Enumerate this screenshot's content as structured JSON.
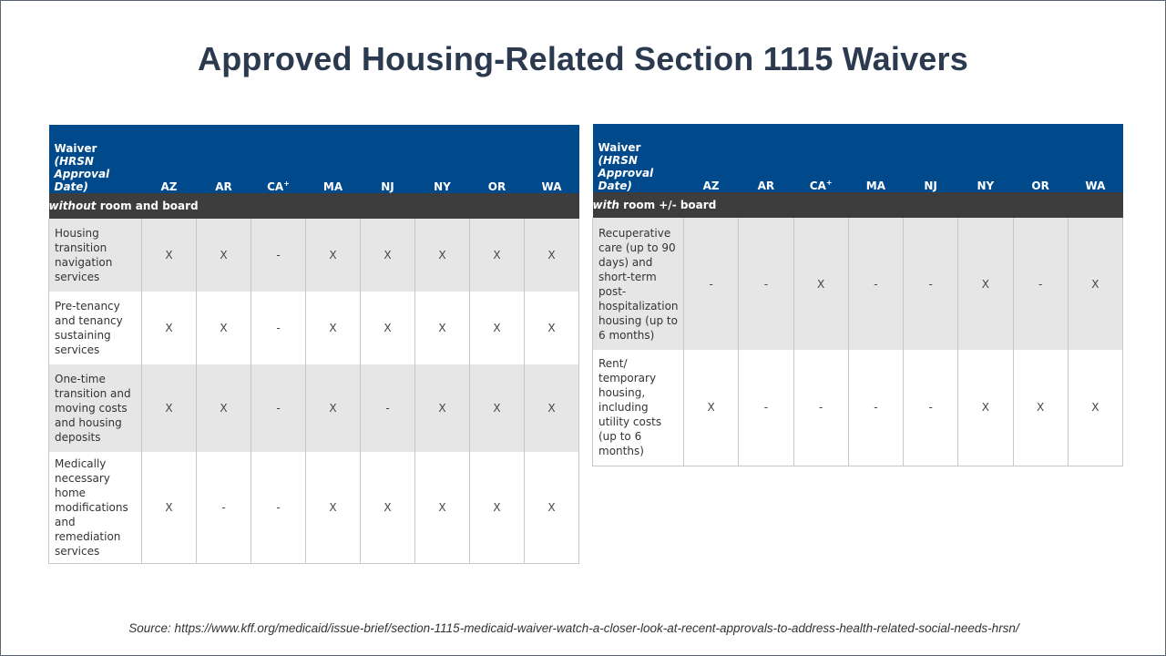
{
  "title": "Approved Housing-Related Section 1115 Waivers",
  "header": {
    "waiver": "Waiver",
    "hrsn": "(HRSN",
    "approval": "Approval",
    "date": "Date)",
    "states": [
      "AZ",
      "AR",
      "CA",
      "MA",
      "NJ",
      "NY",
      "OR",
      "WA"
    ],
    "ca_marker": "+"
  },
  "left_table": {
    "section_italic": "without",
    "section_rest": " room and board",
    "rows": [
      {
        "label": "Housing transition navigation services",
        "values": [
          "X",
          "X",
          "-",
          "X",
          "X",
          "X",
          "X",
          "X"
        ]
      },
      {
        "label": "Pre-tenancy and tenancy sustaining services",
        "values": [
          "X",
          "X",
          "-",
          "X",
          "X",
          "X",
          "X",
          "X"
        ]
      },
      {
        "label": "One-time transition and moving costs and housing deposits",
        "values": [
          "X",
          "X",
          "-",
          "X",
          "-",
          "X",
          "X",
          "X"
        ]
      },
      {
        "label": "Medically necessary home modifications and remediation services",
        "values": [
          "X",
          "-",
          "-",
          "X",
          "X",
          "X",
          "X",
          "X"
        ]
      }
    ]
  },
  "right_table": {
    "section_italic": "with",
    "section_rest": " room +/- board",
    "rows": [
      {
        "label": "Recuperative care (up to 90 days) and short-term post-hospitalization housing (up to 6 months)",
        "values": [
          "-",
          "-",
          "X",
          "-",
          "-",
          "X",
          "-",
          "X"
        ]
      },
      {
        "label": "Rent/ temporary housing, including utility costs (up to 6 months)",
        "values": [
          "X",
          "-",
          "-",
          "-",
          "-",
          "X",
          "X",
          "X"
        ]
      }
    ]
  },
  "source": "Source: https://www.kff.org/medicaid/issue-brief/section-1115-medicaid-waiver-watch-a-closer-look-at-recent-approvals-to-address-health-related-social-needs-hrsn/"
}
